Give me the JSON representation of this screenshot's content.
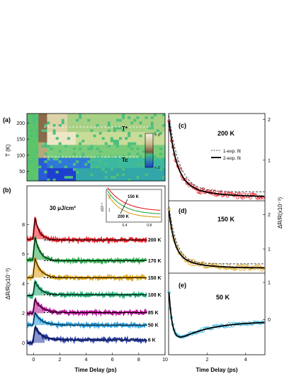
{
  "colors": {
    "axis": "#000000",
    "fit": "#000000",
    "dashed_fit": "#444444",
    "heatmap_low": "#1e4fd6",
    "heatmap_mid": "#3fbf86",
    "heatmap_high": "#e9e4c2",
    "T_star_line": "#ffffff"
  },
  "chart_data": [
    {
      "panel": "(a)",
      "type": "heatmap",
      "ylabel": "T (K)",
      "yticks": [
        50,
        100,
        150,
        200
      ],
      "ylim": [
        20,
        230
      ],
      "xlim": [
        -1,
        10
      ],
      "colorbar_labels": [
        "> 0",
        "< 0"
      ],
      "annotations": [
        {
          "text": "T*",
          "T": 175
        },
        {
          "text": "Tc",
          "T": 85
        }
      ],
      "legend_placement": "right"
    },
    {
      "panel": "(b)",
      "type": "line",
      "annotation": "30 μJ/cm²",
      "xlabel": "Time Delay (ps)",
      "ylabel": "ΔR/R(x10⁻³)",
      "xticks": [
        0,
        2,
        4,
        6,
        8,
        10
      ],
      "yticks": [
        0,
        2,
        4,
        6,
        8
      ],
      "xlim": [
        -0.5,
        10
      ],
      "ylim": [
        -0.8,
        10.6
      ],
      "series": [
        {
          "name": "200 K",
          "color": "#e8202a",
          "offset": 7.0,
          "peak": 1.45,
          "tau": 0.35,
          "baseline": -0.05
        },
        {
          "name": "170 K",
          "color": "#2aa84a",
          "offset": 5.6,
          "peak": 1.55,
          "tau": 0.4,
          "baseline": -0.05
        },
        {
          "name": "150 K",
          "color": "#d8a018",
          "offset": 4.4,
          "peak": 1.3,
          "tau": 0.45,
          "baseline": 0.0
        },
        {
          "name": "100 K",
          "color": "#1fa86e",
          "offset": 3.2,
          "peak": 0.95,
          "tau": 0.45,
          "baseline": 0.05
        },
        {
          "name": "85 K",
          "color": "#b0148f",
          "offset": 2.0,
          "peak": 0.95,
          "tau": 0.5,
          "baseline": 0.05
        },
        {
          "name": "50 K",
          "color": "#2a9ad8",
          "offset": 1.2,
          "peak": 0.85,
          "tau": 0.5,
          "baseline": 0.0
        },
        {
          "name": "6 K",
          "color": "#2b3fa8",
          "offset": 0.0,
          "peak": 1.1,
          "tau": 0.5,
          "baseline": 0.2
        }
      ],
      "inset": {
        "ylabel": "x10⁻³",
        "xticks": [
          0.4,
          0.8
        ],
        "yticks": [
          1,
          2
        ],
        "annotation": "150 K",
        "annotation_2": "200 K",
        "series_colors": [
          "#d8a018",
          "#2aa84a",
          "#e8202a"
        ]
      }
    },
    {
      "panel": "(c)",
      "type": "scatter",
      "label": "200 K",
      "color": "#e8202a",
      "right_yticks": [
        1,
        2
      ],
      "legend": [
        "1-exp. fit",
        "2-exp. fit"
      ],
      "legend_placement": "center-right"
    },
    {
      "panel": "(d)",
      "type": "scatter",
      "label": "150 K",
      "color": "#d8a018",
      "right_yticks": [
        1,
        2
      ],
      "right_ylabel": "ΔR/R(x10⁻³)"
    },
    {
      "panel": "(e)",
      "type": "scatter",
      "label": "50 K",
      "color": "#38b6e0",
      "xlabel": "Time Delay (ps)",
      "xticks": [
        2,
        4
      ],
      "xlim": [
        0,
        5
      ],
      "right_yticks": [
        0,
        1
      ]
    }
  ]
}
